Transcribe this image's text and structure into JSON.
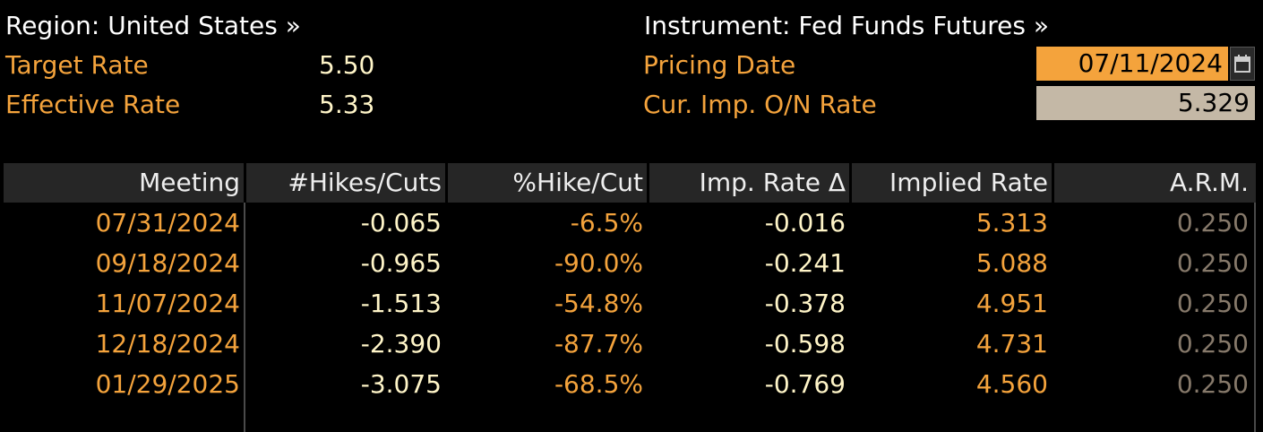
{
  "header": {
    "region_label": "Region: United States »",
    "instrument_label": "Instrument: Fed Funds Futures »",
    "target_rate_label": "Target Rate",
    "target_rate_value": "5.50",
    "effective_rate_label": "Effective Rate",
    "effective_rate_value": "5.33",
    "pricing_date_label": "Pricing Date",
    "pricing_date_value": "07/11/2024",
    "cur_imp_label": "Cur. Imp. O/N Rate",
    "cur_imp_value": "5.329",
    "calendar_icon": "calendar-icon"
  },
  "table": {
    "columns": [
      "Meeting",
      "#Hikes/Cuts",
      "%Hike/Cut",
      "Imp. Rate Δ",
      "Implied Rate",
      "A.R.M."
    ],
    "rows": [
      [
        "07/31/2024",
        "-0.065",
        "-6.5%",
        "-0.016",
        "5.313",
        "0.250"
      ],
      [
        "09/18/2024",
        "-0.965",
        "-90.0%",
        "-0.241",
        "5.088",
        "0.250"
      ],
      [
        "11/07/2024",
        "-1.513",
        "-54.8%",
        "-0.378",
        "4.951",
        "0.250"
      ],
      [
        "12/18/2024",
        "-2.390",
        "-87.7%",
        "-0.598",
        "4.731",
        "0.250"
      ],
      [
        "01/29/2025",
        "-3.075",
        "-68.5%",
        "-0.769",
        "4.560",
        "0.250"
      ]
    ]
  },
  "colors": {
    "background": "#000000",
    "label_orange": "#f4a33c",
    "value_cream": "#fff5c8",
    "muted_grey": "#86796a",
    "input_highlight": "#f4a33c",
    "input_readonly": "#c4b8a6"
  }
}
